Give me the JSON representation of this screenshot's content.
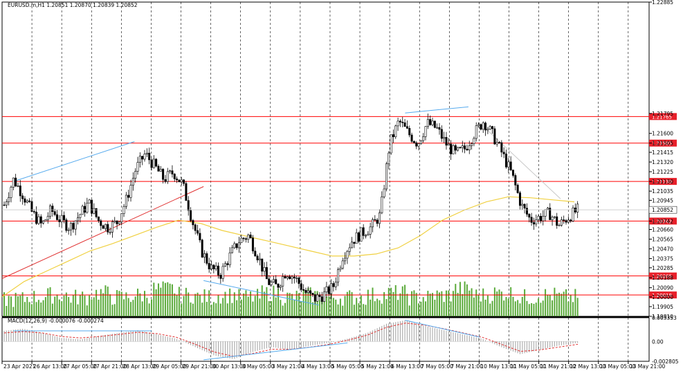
{
  "chart_data": {
    "type": "candlestick",
    "title": "EURUSD.m,H1  1.20851 1.20870 1.20839 1.20852",
    "price_axis": {
      "range": [
        1.1981,
        1.22885
      ],
      "ticks": [
        "1.22885",
        "1.21795",
        "1.21600",
        "1.21505",
        "1.21415",
        "1.21320",
        "1.21225",
        "1.21130",
        "1.21035",
        "1.20945",
        "1.20852",
        "1.20742",
        "1.20660",
        "1.20565",
        "1.20470",
        "1.20375",
        "1.20285",
        "1.20188",
        "1.20090",
        "1.20000",
        "1.19905",
        "1.19810"
      ]
    },
    "current_price": "1.20852",
    "horizontal_levels": [
      {
        "value": 1.21765,
        "label": "1.21765"
      },
      {
        "value": 1.21505,
        "label": "1.21505"
      },
      {
        "value": 1.2113,
        "label": "1.21130"
      },
      {
        "value": 1.20742,
        "label": "1.20742"
      },
      {
        "value": 1.20205,
        "label": "1.20205"
      },
      {
        "value": 1.20019,
        "label": "1.20019"
      }
    ],
    "time_axis_labels": [
      "23 Apr 2021",
      "26 Apr 13:00",
      "27 Apr 05:00",
      "27 Apr 21:00",
      "28 Apr 13:00",
      "29 Apr 05:00",
      "29 Apr 21:00",
      "30 Apr 13:00",
      "3 May 05:00",
      "3 May 21:00",
      "4 May 13:00",
      "5 May 05:00",
      "5 May 21:00",
      "6 May 13:00",
      "7 May 05:00",
      "7 May 21:00",
      "10 May 13:00",
      "11 May 05:00",
      "11 May 21:00",
      "12 May 13:00",
      "13 May 05:00",
      "13 May 21:00"
    ],
    "close_path": [
      1.209,
      1.2115,
      1.21,
      1.2082,
      1.207,
      1.2085,
      1.2075,
      1.2068,
      1.208,
      1.2092,
      1.2075,
      1.2068,
      1.2073,
      1.2095,
      1.2125,
      1.214,
      1.2128,
      1.2115,
      1.2122,
      1.211,
      1.2075,
      1.2045,
      1.2028,
      1.2022,
      1.204,
      1.2055,
      1.206,
      1.204,
      1.2015,
      1.201,
      1.2025,
      1.2018,
      1.2005,
      1.1998,
      1.2002,
      1.201,
      1.204,
      1.2055,
      1.2062,
      1.2068,
      1.208,
      1.215,
      1.2172,
      1.216,
      1.215,
      1.217,
      1.2165,
      1.215,
      1.214,
      1.2145,
      1.216,
      1.2172,
      1.2158,
      1.214,
      1.212,
      1.209,
      1.2075,
      1.2078,
      1.2082,
      1.207,
      1.2078,
      1.2085
    ],
    "moving_average_path": [
      1.2,
      1.2015,
      1.2025,
      1.2035,
      1.2045,
      1.2052,
      1.206,
      1.2068,
      1.2075,
      1.2072,
      1.2065,
      1.206,
      1.2055,
      1.205,
      1.2045,
      1.204,
      1.204,
      1.2042,
      1.2048,
      1.206,
      1.2075,
      1.2085,
      1.2093,
      1.2098,
      1.2097,
      1.2095,
      1.2093
    ],
    "volume_level_rel": [
      0.4,
      0.5,
      0.6,
      0.5,
      0.7,
      0.5,
      0.6,
      0.9,
      0.6,
      0.5,
      0.6,
      0.5,
      0.7,
      0.5,
      0.6,
      0.5,
      0.5,
      0.6,
      0.7,
      0.5,
      0.6,
      0.9,
      0.6,
      0.7,
      0.5,
      0.6,
      0.5
    ],
    "macd": {
      "label": "MACD(12,26,9) -0.000076 -0.000274",
      "ticks": [
        "0.003353",
        "0.00",
        "-0.002805"
      ],
      "range": [
        -0.002805,
        0.003353
      ],
      "histogram": [
        0.0015,
        0.0018,
        0.0012,
        0.0005,
        0.0003,
        0.0008,
        0.0012,
        0.0016,
        0.001,
        0.0004,
        -0.0008,
        -0.002,
        -0.0025,
        -0.0015,
        -0.0008,
        -0.0012,
        -0.0006,
        -0.0002,
        0.0004,
        0.0012,
        0.0025,
        0.003,
        0.0022,
        0.0016,
        0.001,
        0.0004,
        -0.0008,
        -0.0018,
        -0.0012,
        -0.0006,
        -0.0002
      ],
      "signal": [
        0.0012,
        0.0014,
        0.0012,
        0.0007,
        0.0005,
        0.0007,
        0.001,
        0.0013,
        0.0011,
        0.0006,
        -0.0004,
        -0.0015,
        -0.0021,
        -0.0017,
        -0.0011,
        -0.0011,
        -0.0008,
        -0.0004,
        0.0002,
        0.0009,
        0.002,
        0.0026,
        0.0023,
        0.0018,
        0.0012,
        0.0006,
        -0.0004,
        -0.0014,
        -0.0012,
        -0.0008,
        -0.0004
      ]
    }
  },
  "colors": {
    "bull": "#000000",
    "bear": "#000000",
    "level_line": "#ff0000",
    "level_tag": "#e8202a",
    "ma": "#f0d040",
    "trend_blue": "#55aaee",
    "trend_red": "#e03030",
    "trend_grey": "#c8c8c8",
    "volume": "#5aaa3a",
    "macd_hist": "#a0a0a0",
    "macd_signal": "#e03030",
    "grid": "#000000"
  }
}
